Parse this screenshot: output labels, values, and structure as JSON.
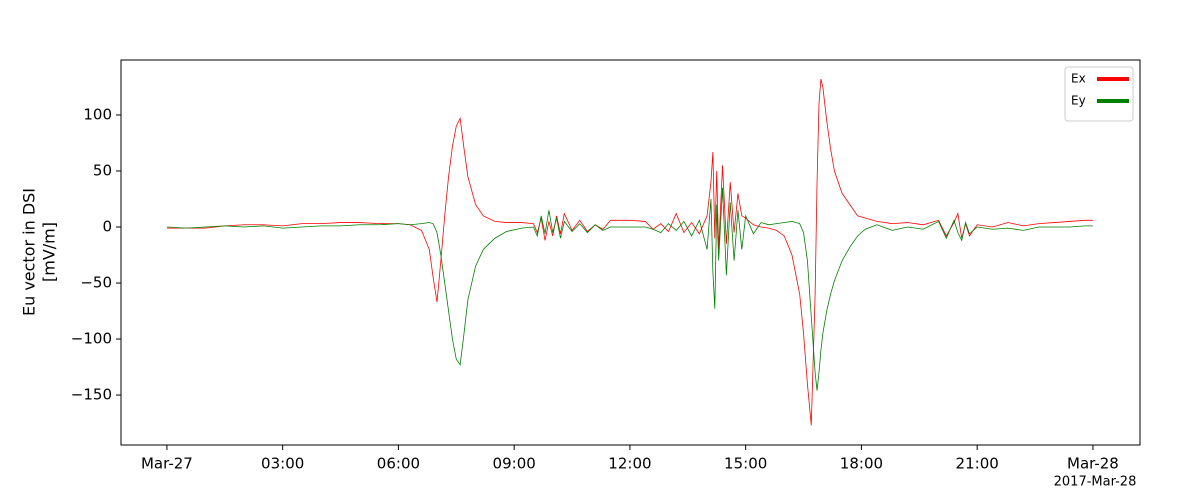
{
  "chart_data": {
    "type": "line",
    "ylabel": [
      "Eu vector in DSI",
      "[mV/m]"
    ],
    "annotation": "2017-Mar-28",
    "x": [
      0,
      0.5,
      1,
      1.5,
      2,
      2.5,
      3,
      3.5,
      4,
      4.5,
      5,
      5.5,
      6,
      6.3,
      6.6,
      6.8,
      6.9,
      7.0,
      7.1,
      7.2,
      7.3,
      7.4,
      7.5,
      7.6,
      7.7,
      7.8,
      8.0,
      8.2,
      8.5,
      8.8,
      9.2,
      9.5,
      9.6,
      9.7,
      9.8,
      9.9,
      10.0,
      10.1,
      10.2,
      10.3,
      10.5,
      10.7,
      10.9,
      11.1,
      11.3,
      11.5,
      12.0,
      12.4,
      12.6,
      12.8,
      13.0,
      13.2,
      13.4,
      13.6,
      13.8,
      14.0,
      14.1,
      14.15,
      14.2,
      14.25,
      14.3,
      14.4,
      14.5,
      14.6,
      14.7,
      14.8,
      14.9,
      15.0,
      15.2,
      15.4,
      15.6,
      15.8,
      16.0,
      16.2,
      16.4,
      16.5,
      16.6,
      16.7,
      16.8,
      16.85,
      16.9,
      16.95,
      17.0,
      17.1,
      17.2,
      17.3,
      17.5,
      17.7,
      17.9,
      18.1,
      18.4,
      18.8,
      19.2,
      19.6,
      20.0,
      20.2,
      20.4,
      20.5,
      20.6,
      20.7,
      20.8,
      21.0,
      21.4,
      21.8,
      22.2,
      22.6,
      23.0,
      23.4,
      23.8,
      24.0
    ],
    "series": [
      {
        "name": "Ex",
        "color": "#ff0000",
        "values": [
          -1,
          -1,
          -1,
          1,
          2,
          2,
          1,
          3,
          3,
          4,
          4,
          3,
          3,
          2,
          -3,
          -20,
          -45,
          -67,
          -30,
          10,
          45,
          72,
          90,
          97,
          70,
          45,
          20,
          10,
          5,
          4,
          4,
          3,
          -5,
          8,
          -12,
          5,
          -8,
          10,
          -6,
          12,
          -3,
          6,
          -4,
          2,
          -2,
          6,
          6,
          5,
          -2,
          3,
          -4,
          12,
          -5,
          4,
          -6,
          10,
          40,
          67,
          -10,
          50,
          -20,
          55,
          -15,
          40,
          -5,
          30,
          10,
          8,
          2,
          0,
          -1,
          -3,
          -8,
          -25,
          -60,
          -95,
          -140,
          -177,
          -60,
          40,
          110,
          132,
          125,
          95,
          70,
          50,
          30,
          20,
          10,
          8,
          5,
          3,
          4,
          2,
          6,
          -8,
          4,
          12,
          -10,
          3,
          -8,
          2,
          0,
          4,
          1,
          3,
          4,
          5,
          6,
          6
        ]
      },
      {
        "name": "Ey",
        "color": "#008000",
        "values": [
          0,
          -1,
          0,
          1,
          0,
          1,
          -1,
          0,
          1,
          1,
          2,
          2,
          3,
          2,
          3,
          4,
          3,
          -5,
          -25,
          -50,
          -75,
          -100,
          -118,
          -123,
          -95,
          -65,
          -35,
          -20,
          -10,
          -4,
          -1,
          0,
          -8,
          10,
          -6,
          15,
          -5,
          8,
          -10,
          5,
          -4,
          3,
          -5,
          2,
          -3,
          0,
          0,
          0,
          -2,
          -5,
          3,
          -3,
          5,
          -8,
          6,
          -20,
          25,
          -40,
          -73,
          20,
          -30,
          35,
          -43,
          22,
          -30,
          15,
          -20,
          10,
          -6,
          4,
          2,
          3,
          4,
          5,
          3,
          -5,
          -30,
          -80,
          -130,
          -146,
          -130,
          -110,
          -95,
          -75,
          -60,
          -48,
          -30,
          -18,
          -8,
          -2,
          2,
          -3,
          0,
          -2,
          5,
          -10,
          6,
          -5,
          -12,
          4,
          -6,
          0,
          -2,
          -1,
          -3,
          0,
          0,
          0,
          1,
          1
        ]
      }
    ],
    "xlim": [
      -1.19,
      25.22
    ],
    "xticks": [
      {
        "value": 0,
        "label": "Mar-27"
      },
      {
        "value": 3,
        "label": "03:00"
      },
      {
        "value": 6,
        "label": "06:00"
      },
      {
        "value": 9,
        "label": "09:00"
      },
      {
        "value": 12,
        "label": "12:00"
      },
      {
        "value": 15,
        "label": "15:00"
      },
      {
        "value": 18,
        "label": "18:00"
      },
      {
        "value": 21,
        "label": "21:00"
      },
      {
        "value": 24,
        "label": "Mar-28"
      }
    ],
    "ylim": [
      -194.6,
      149.1
    ],
    "yticks": [
      {
        "value": -150,
        "label": "−150"
      },
      {
        "value": -100,
        "label": "−100"
      },
      {
        "value": -50,
        "label": "−50"
      },
      0,
      50,
      100
    ],
    "legend": "upper right"
  }
}
